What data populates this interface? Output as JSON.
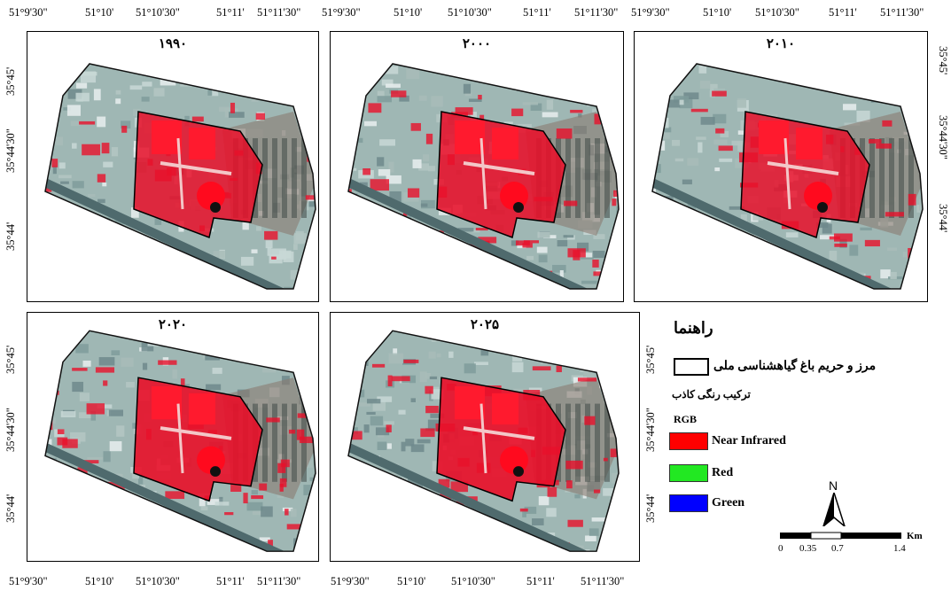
{
  "top_x_labels": [
    "51°9'30\"",
    "51°10'",
    "51°10'30\"",
    "51°11'",
    "51°11'30\""
  ],
  "bottom_x_labels": [
    "51°9'30\"",
    "51°10'",
    "51°10'30\"",
    "51°11'",
    "51°11'30\""
  ],
  "y_labels": [
    "35°45'",
    "35°44'30\"",
    "35°44'"
  ],
  "panels": [
    {
      "year": "۱۹۹۰"
    },
    {
      "year": "۲۰۰۰"
    },
    {
      "year": "۲۰۱۰"
    },
    {
      "year": "۲۰۲۰"
    },
    {
      "year": "۲۰۲۵"
    }
  ],
  "legend": {
    "title": "راهنما",
    "boundary_label": "مرز و حریم باغ گیاهشناسی ملی",
    "composite_label": "ترکیب رنگی کاذب",
    "rgb_label": "RGB",
    "items": [
      {
        "label": "Near Infrared",
        "color": "#ff0000"
      },
      {
        "label": "Red",
        "color": "#22e822"
      },
      {
        "label": "Green",
        "color": "#0000ff"
      }
    ]
  },
  "north_label": "N",
  "scale": {
    "unit": "Km",
    "ticks": [
      "0",
      "0.35",
      "0.7",
      "1.4"
    ]
  }
}
